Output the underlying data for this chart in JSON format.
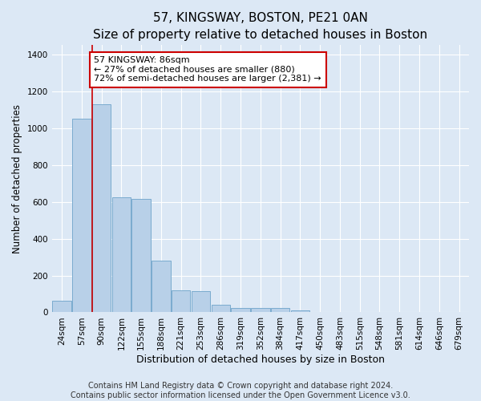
{
  "title": "57, KINGSWAY, BOSTON, PE21 0AN",
  "subtitle": "Size of property relative to detached houses in Boston",
  "xlabel": "Distribution of detached houses by size in Boston",
  "ylabel": "Number of detached properties",
  "categories": [
    "24sqm",
    "57sqm",
    "90sqm",
    "122sqm",
    "155sqm",
    "188sqm",
    "221sqm",
    "253sqm",
    "286sqm",
    "319sqm",
    "352sqm",
    "384sqm",
    "417sqm",
    "450sqm",
    "483sqm",
    "515sqm",
    "548sqm",
    "581sqm",
    "614sqm",
    "646sqm",
    "679sqm"
  ],
  "values": [
    65,
    1050,
    1130,
    625,
    615,
    280,
    120,
    115,
    42,
    25,
    25,
    25,
    10,
    0,
    0,
    0,
    0,
    0,
    0,
    0,
    0
  ],
  "bar_color": "#b8d0e8",
  "bar_edge_color": "#7aabcf",
  "annotation_line1": "57 KINGSWAY: 86sqm",
  "annotation_line2": "← 27% of detached houses are smaller (880)",
  "annotation_line3": "72% of semi-detached houses are larger (2,381) →",
  "annotation_box_color": "#ffffff",
  "annotation_box_edge_color": "#cc0000",
  "background_color": "#dce8f5",
  "grid_color": "#ffffff",
  "ylim": [
    0,
    1450
  ],
  "red_line_color": "#cc0000",
  "red_line_x": 2.0,
  "footer_text": "Contains HM Land Registry data © Crown copyright and database right 2024.\nContains public sector information licensed under the Open Government Licence v3.0.",
  "title_fontsize": 11,
  "subtitle_fontsize": 9.5,
  "xlabel_fontsize": 9,
  "ylabel_fontsize": 8.5,
  "tick_fontsize": 7.5,
  "annotation_fontsize": 8,
  "footer_fontsize": 7
}
